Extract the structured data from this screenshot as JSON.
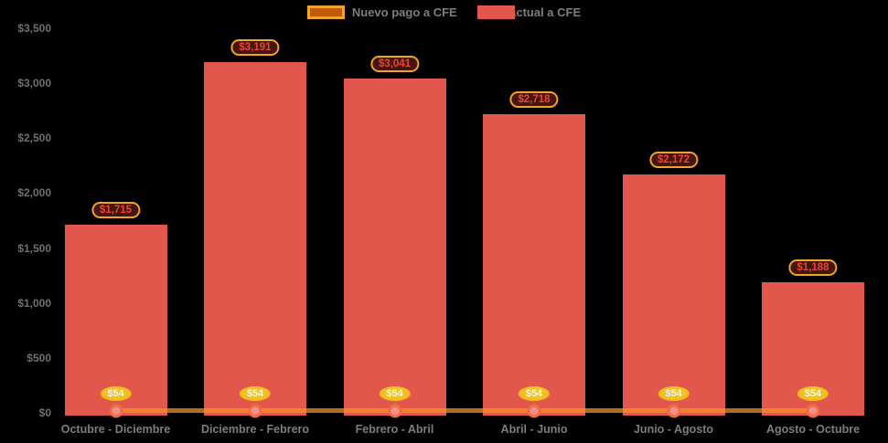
{
  "chart_data": {
    "type": "bar+line",
    "title": "",
    "categories": [
      "Octubre - Diciembre",
      "Diciembre - Febrero",
      "Febrero - Abril",
      "Abril - Junio",
      "Junio - Agosto",
      "Agosto - Octubre"
    ],
    "series": [
      {
        "name": "Nuevo pago a CFE",
        "type": "line",
        "values": [
          54,
          54,
          54,
          54,
          54,
          54
        ],
        "labels": [
          "$54",
          "$54",
          "$54",
          "$54",
          "$54",
          "$54"
        ],
        "color": "#f7941e"
      },
      {
        "name": "Pago actual a CFE",
        "type": "bar",
        "values": [
          1715,
          3191,
          3041,
          2718,
          2172,
          1188
        ],
        "labels": [
          "$1,715",
          "$3,191",
          "$3,041",
          "$2,718",
          "$2,172",
          "$1,188"
        ],
        "color": "#e2574c"
      }
    ],
    "ylim": [
      0,
      3500
    ],
    "yticks": [
      {
        "label": "$0",
        "value": 0
      },
      {
        "label": "$500",
        "value": 500
      },
      {
        "label": "$1,000",
        "value": 1000
      },
      {
        "label": "$1,500",
        "value": 1500
      },
      {
        "label": "$2,000",
        "value": 2000
      },
      {
        "label": "$2,500",
        "value": 2500
      },
      {
        "label": "$3,000",
        "value": 3000
      },
      {
        "label": "$3,500",
        "value": 3500
      }
    ],
    "grid": false,
    "legend_position": "top-center",
    "background": "#000000",
    "colors": {
      "bar_fill": "#e2574c",
      "line_stroke": "#f7941e",
      "marker_fill": "#f5918a",
      "marker_stroke": "#ef6c45",
      "badge_fill": "#f2c01e",
      "badge_border": "#efa126",
      "badge_text": "#ffffff",
      "pill_background": "#451610",
      "pill_border": "#f0a22e",
      "pill_text": "#e84537",
      "axis_text": "#7d7d7d",
      "legend_text": "#7d7d7d",
      "legend_line_swatch_fill": "#c2590d",
      "legend_line_swatch_border": "#f2a22d"
    }
  }
}
